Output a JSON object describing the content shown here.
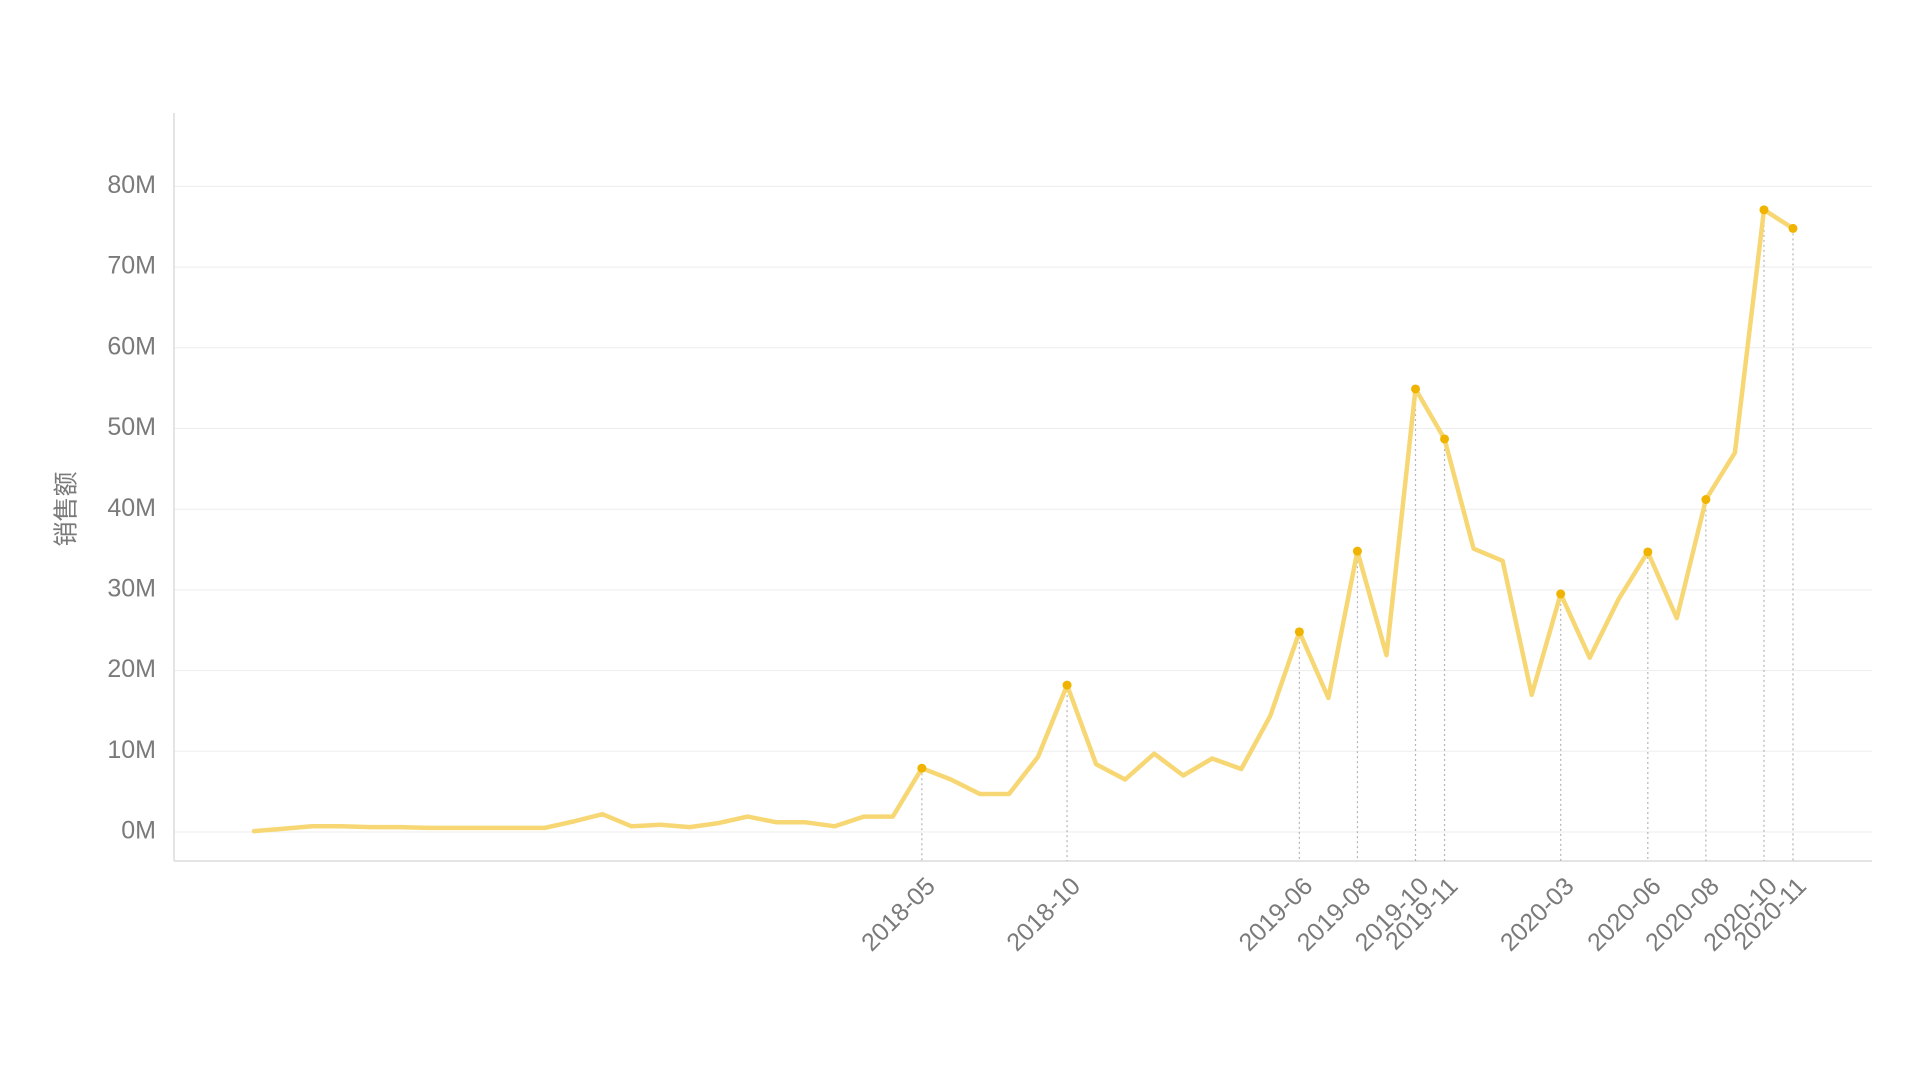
{
  "chart_data": {
    "type": "line",
    "y_label": "销售额",
    "categories": [
      null,
      null,
      null,
      null,
      null,
      null,
      null,
      null,
      null,
      null,
      null,
      null,
      null,
      null,
      null,
      null,
      null,
      null,
      null,
      null,
      null,
      null,
      null,
      "2018-05",
      null,
      null,
      null,
      null,
      "2018-10",
      null,
      null,
      null,
      null,
      null,
      null,
      null,
      "2019-06",
      null,
      "2019-08",
      null,
      "2019-10",
      "2019-11",
      null,
      null,
      null,
      "2020-03",
      null,
      null,
      "2020-06",
      null,
      "2020-08",
      null,
      "2020-10",
      "2020-11"
    ],
    "values": [
      0.1,
      0.4,
      0.7,
      0.7,
      0.6,
      0.6,
      0.5,
      0.5,
      0.5,
      0.5,
      0.5,
      1.3,
      2.2,
      0.7,
      0.9,
      0.6,
      1.1,
      1.9,
      1.2,
      1.2,
      0.7,
      1.9,
      1.9,
      7.9,
      6.5,
      4.7,
      4.7,
      9.3,
      18.2,
      8.4,
      6.5,
      9.7,
      7.0,
      9.1,
      7.8,
      14.4,
      24.8,
      16.6,
      34.8,
      21.9,
      54.9,
      48.7,
      35.1,
      33.6,
      17.0,
      29.5,
      21.6,
      28.9,
      34.7,
      26.5,
      41.2,
      47.0,
      77.1,
      74.8
    ],
    "color": "#f7d774",
    "marker_color": "#f0b400",
    "ylim": [
      -3.6,
      89.1
    ],
    "yticks": [
      {
        "value": 0,
        "label": "0M"
      },
      {
        "value": 10,
        "label": "10M"
      },
      {
        "value": 20,
        "label": "20M"
      },
      {
        "value": 30,
        "label": "30M"
      },
      {
        "value": 40,
        "label": "40M"
      },
      {
        "value": 50,
        "label": "50M"
      },
      {
        "value": 60,
        "label": "60M"
      },
      {
        "value": 70,
        "label": "70M"
      },
      {
        "value": 80,
        "label": "80M"
      }
    ],
    "grid": true
  }
}
